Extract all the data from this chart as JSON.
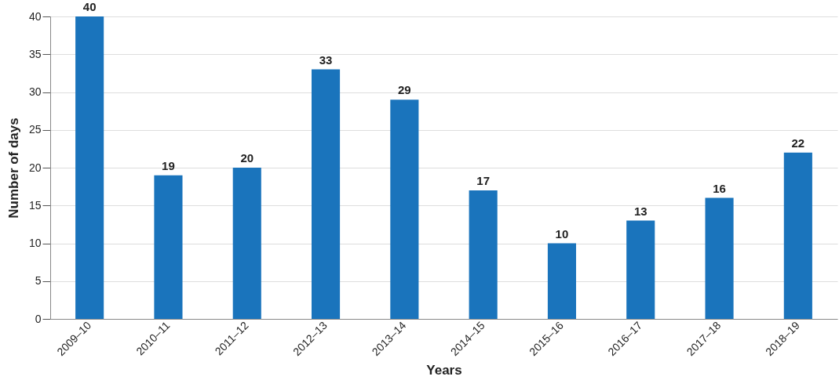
{
  "chart_data": {
    "type": "bar",
    "xlabel": "Years",
    "ylabel": "Number of days",
    "categories": [
      "2009–10",
      "2010–11",
      "2011–12",
      "2012–13",
      "2013–14",
      "2014–15",
      "2015–16",
      "2016–17",
      "2017–18",
      "2018–19"
    ],
    "values": [
      40,
      19,
      20,
      33,
      29,
      17,
      10,
      13,
      16,
      22
    ],
    "color": "#1a74bc",
    "ylim": [
      0,
      40
    ],
    "yticks": [
      0,
      5,
      10,
      15,
      20,
      25,
      30,
      35,
      40
    ],
    "grid": "y",
    "data_labels": true
  }
}
